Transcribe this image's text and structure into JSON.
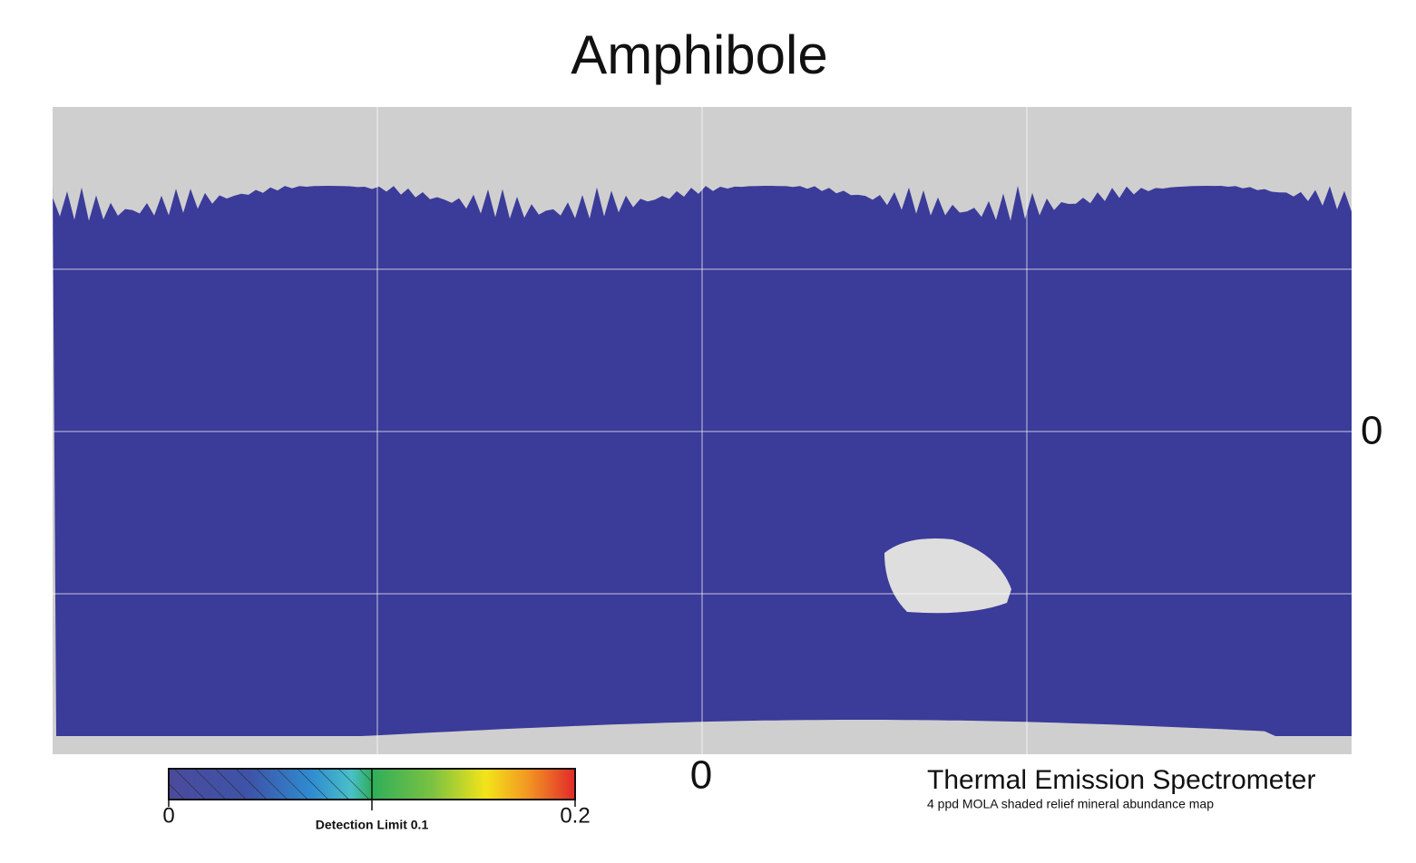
{
  "title": "Amphibole",
  "map": {
    "lat_label": "0",
    "lon_label": "0"
  },
  "colorbar": {
    "range": [
      0,
      0.2
    ],
    "ticks": [
      0,
      0.2
    ],
    "detection_limit": {
      "value": 0.1,
      "label": "Detection Limit 0.1"
    }
  },
  "footer": {
    "instrument": "Thermal Emission Spectrometer",
    "description": "4 ppd MOLA shaded relief mineral abundance map"
  }
}
